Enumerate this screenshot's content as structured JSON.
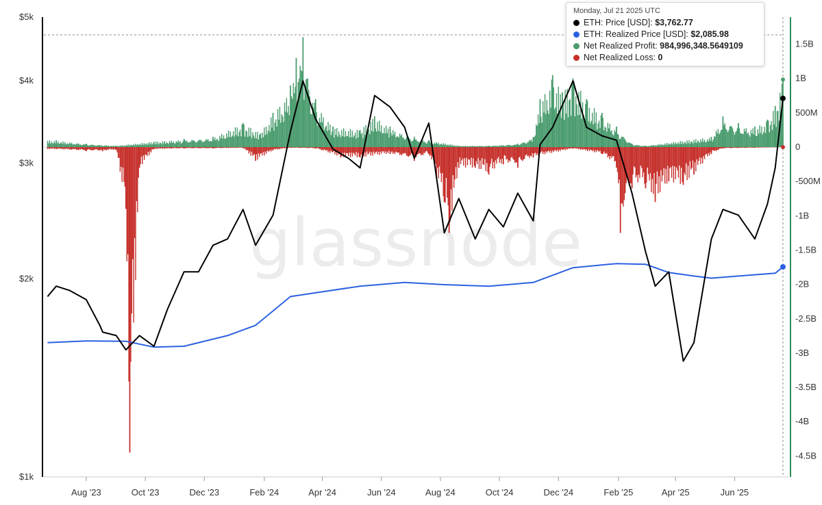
{
  "chart_data": {
    "type": "line",
    "watermark": "glassnode",
    "x_tick_labels": [
      "Aug '23",
      "Oct '23",
      "Dec '23",
      "Feb '24",
      "Apr '24",
      "Jun '24",
      "Aug '24",
      "Oct '24",
      "Dec '24",
      "Feb '25",
      "Apr '25",
      "Jun '25"
    ],
    "left_axis": {
      "scale": "log",
      "range": [
        1000,
        5000
      ],
      "tick_labels": [
        "$5k",
        "$4k",
        "$3k",
        "$2k",
        "$1k"
      ],
      "tick_values": [
        5000,
        4000,
        3000,
        2000,
        1000
      ]
    },
    "right_axis": {
      "scale": "linear",
      "range": [
        -5000000000,
        2000000000
      ],
      "tick_labels": [
        "1.5B",
        "1B",
        "500M",
        "0",
        "-500M",
        "-1B",
        "-1.5B",
        "-2B",
        "-2.5B",
        "-3B",
        "-3.5B",
        "-4B",
        "-4.5B"
      ],
      "tick_values": [
        1500000000,
        1000000000,
        500000000,
        0,
        -500000000,
        -1000000000,
        -1500000000,
        -2000000000,
        -2500000000,
        -3000000000,
        -3500000000,
        -4000000000,
        -4500000000
      ]
    },
    "series": [
      {
        "name": "ETH: Price [USD]",
        "color": "#000000",
        "x": [
          "2023-06-22",
          "2023-07-01",
          "2023-07-15",
          "2023-08-01",
          "2023-08-15",
          "2023-08-18",
          "2023-09-01",
          "2023-09-11",
          "2023-09-25",
          "2023-10-10",
          "2023-10-24",
          "2023-11-10",
          "2023-11-25",
          "2023-12-10",
          "2023-12-25",
          "2024-01-10",
          "2024-01-23",
          "2024-02-10",
          "2024-02-28",
          "2024-03-12",
          "2024-03-25",
          "2024-04-12",
          "2024-04-28",
          "2024-05-10",
          "2024-05-25",
          "2024-06-10",
          "2024-06-25",
          "2024-07-05",
          "2024-07-20",
          "2024-08-05",
          "2024-08-20",
          "2024-09-06",
          "2024-09-20",
          "2024-10-05",
          "2024-10-20",
          "2024-11-05",
          "2024-11-12",
          "2024-11-25",
          "2024-12-16",
          "2024-12-30",
          "2025-01-15",
          "2025-01-30",
          "2025-02-15",
          "2025-03-01",
          "2025-03-11",
          "2025-03-25",
          "2025-04-09",
          "2025-04-20",
          "2025-05-08",
          "2025-05-20",
          "2025-06-05",
          "2025-06-22",
          "2025-07-05",
          "2025-07-13",
          "2025-07-21"
        ],
        "y": [
          1880,
          1950,
          1920,
          1860,
          1700,
          1660,
          1640,
          1560,
          1640,
          1580,
          1800,
          2050,
          2050,
          2250,
          2300,
          2550,
          2250,
          2500,
          3350,
          4000,
          3500,
          3150,
          3050,
          2950,
          3800,
          3650,
          3400,
          3050,
          3450,
          2350,
          2650,
          2300,
          2550,
          2400,
          2700,
          2450,
          3200,
          3400,
          4000,
          3400,
          3300,
          3250,
          2700,
          2200,
          1950,
          2050,
          1500,
          1600,
          2300,
          2550,
          2500,
          2300,
          2600,
          2950,
          3762.77
        ]
      },
      {
        "name": "ETH: Realized Price [USD]",
        "color": "#2a60e0",
        "x": [
          "2023-06-22",
          "2023-08-01",
          "2023-09-11",
          "2023-10-10",
          "2023-11-10",
          "2023-12-25",
          "2024-01-23",
          "2024-02-28",
          "2024-03-25",
          "2024-05-10",
          "2024-06-25",
          "2024-08-05",
          "2024-09-20",
          "2024-11-05",
          "2024-12-16",
          "2025-01-30",
          "2025-03-01",
          "2025-03-25",
          "2025-04-20",
          "2025-05-08",
          "2025-06-05",
          "2025-07-13",
          "2025-07-21"
        ],
        "y": [
          1600,
          1610,
          1608,
          1575,
          1580,
          1640,
          1700,
          1880,
          1905,
          1950,
          1975,
          1960,
          1950,
          1975,
          2080,
          2110,
          2105,
          2045,
          2020,
          2005,
          2020,
          2040,
          2085.98
        ]
      },
      {
        "name": "Net Realized Profit",
        "color": "#4a9c6e",
        "latest_value": "984,996,348.5649109",
        "x": [
          "2023-07-01",
          "2023-08-01",
          "2023-09-01",
          "2023-10-10",
          "2023-11-10",
          "2023-12-10",
          "2024-01-10",
          "2024-01-28",
          "2024-02-10",
          "2024-02-28",
          "2024-03-05",
          "2024-03-12",
          "2024-03-25",
          "2024-04-12",
          "2024-05-10",
          "2024-05-25",
          "2024-06-10",
          "2024-07-05",
          "2024-07-20",
          "2024-08-20",
          "2024-09-20",
          "2024-10-20",
          "2024-11-05",
          "2024-11-12",
          "2024-11-25",
          "2024-12-05",
          "2024-12-16",
          "2024-12-30",
          "2025-01-15",
          "2025-01-30",
          "2025-02-15",
          "2025-03-01",
          "2025-05-08",
          "2025-05-20",
          "2025-06-05",
          "2025-06-22",
          "2025-07-05",
          "2025-07-13",
          "2025-07-21"
        ],
        "y": [
          100000000,
          50000000,
          20000000,
          80000000,
          120000000,
          150000000,
          350000000,
          200000000,
          500000000,
          900000000,
          1300000000,
          1600000000,
          700000000,
          300000000,
          250000000,
          450000000,
          300000000,
          150000000,
          100000000,
          20000000,
          20000000,
          50000000,
          150000000,
          700000000,
          1050000000,
          800000000,
          1000000000,
          700000000,
          500000000,
          300000000,
          50000000,
          20000000,
          150000000,
          450000000,
          350000000,
          300000000,
          400000000,
          600000000,
          984996348.5649109
        ]
      },
      {
        "name": "Net Realized Loss",
        "color": "#c6302b",
        "latest_value": "0",
        "x": [
          "2023-07-01",
          "2023-08-01",
          "2023-08-18",
          "2023-09-01",
          "2023-09-11",
          "2023-09-15",
          "2023-09-25",
          "2023-10-10",
          "2023-11-10",
          "2023-12-10",
          "2024-01-10",
          "2024-01-23",
          "2024-02-10",
          "2024-02-28",
          "2024-03-25",
          "2024-04-20",
          "2024-05-10",
          "2024-06-10",
          "2024-07-05",
          "2024-07-20",
          "2024-08-05",
          "2024-08-10",
          "2024-08-20",
          "2024-09-06",
          "2024-09-20",
          "2024-10-05",
          "2024-10-20",
          "2024-11-05",
          "2024-12-16",
          "2025-01-15",
          "2025-01-30",
          "2025-02-03",
          "2025-02-15",
          "2025-03-01",
          "2025-03-11",
          "2025-03-25",
          "2025-04-09",
          "2025-04-20",
          "2025-05-08",
          "2025-05-20",
          "2025-06-22",
          "2025-07-21"
        ],
        "y": [
          -30000000,
          -60000000,
          -60000000,
          -40000000,
          -900000000,
          -4450000000,
          -300000000,
          -30000000,
          -20000000,
          -20000000,
          -10000000,
          -200000000,
          -50000000,
          -10000000,
          -20000000,
          -150000000,
          -150000000,
          -100000000,
          -200000000,
          -100000000,
          -800000000,
          -1250000000,
          -300000000,
          -300000000,
          -400000000,
          -250000000,
          -300000000,
          -150000000,
          -20000000,
          -100000000,
          -300000000,
          -1250000000,
          -600000000,
          -600000000,
          -800000000,
          -500000000,
          -550000000,
          -400000000,
          -100000000,
          -20000000,
          -10000000,
          0
        ]
      }
    ]
  },
  "tooltip": {
    "date": "Monday, Jul 21 2025 UTC",
    "rows": [
      {
        "label": "ETH: Price [USD]",
        "value": "$3,762.77",
        "color": "#000000"
      },
      {
        "label": "ETH: Realized Price [USD]",
        "value": "$2,085.98",
        "color": "#2a60e0"
      },
      {
        "label": "Net Realized Profit",
        "value": "984,996,348.5649109",
        "color": "#4a9c6e"
      },
      {
        "label": "Net Realized Loss",
        "value": "0",
        "color": "#c6302b"
      }
    ]
  }
}
